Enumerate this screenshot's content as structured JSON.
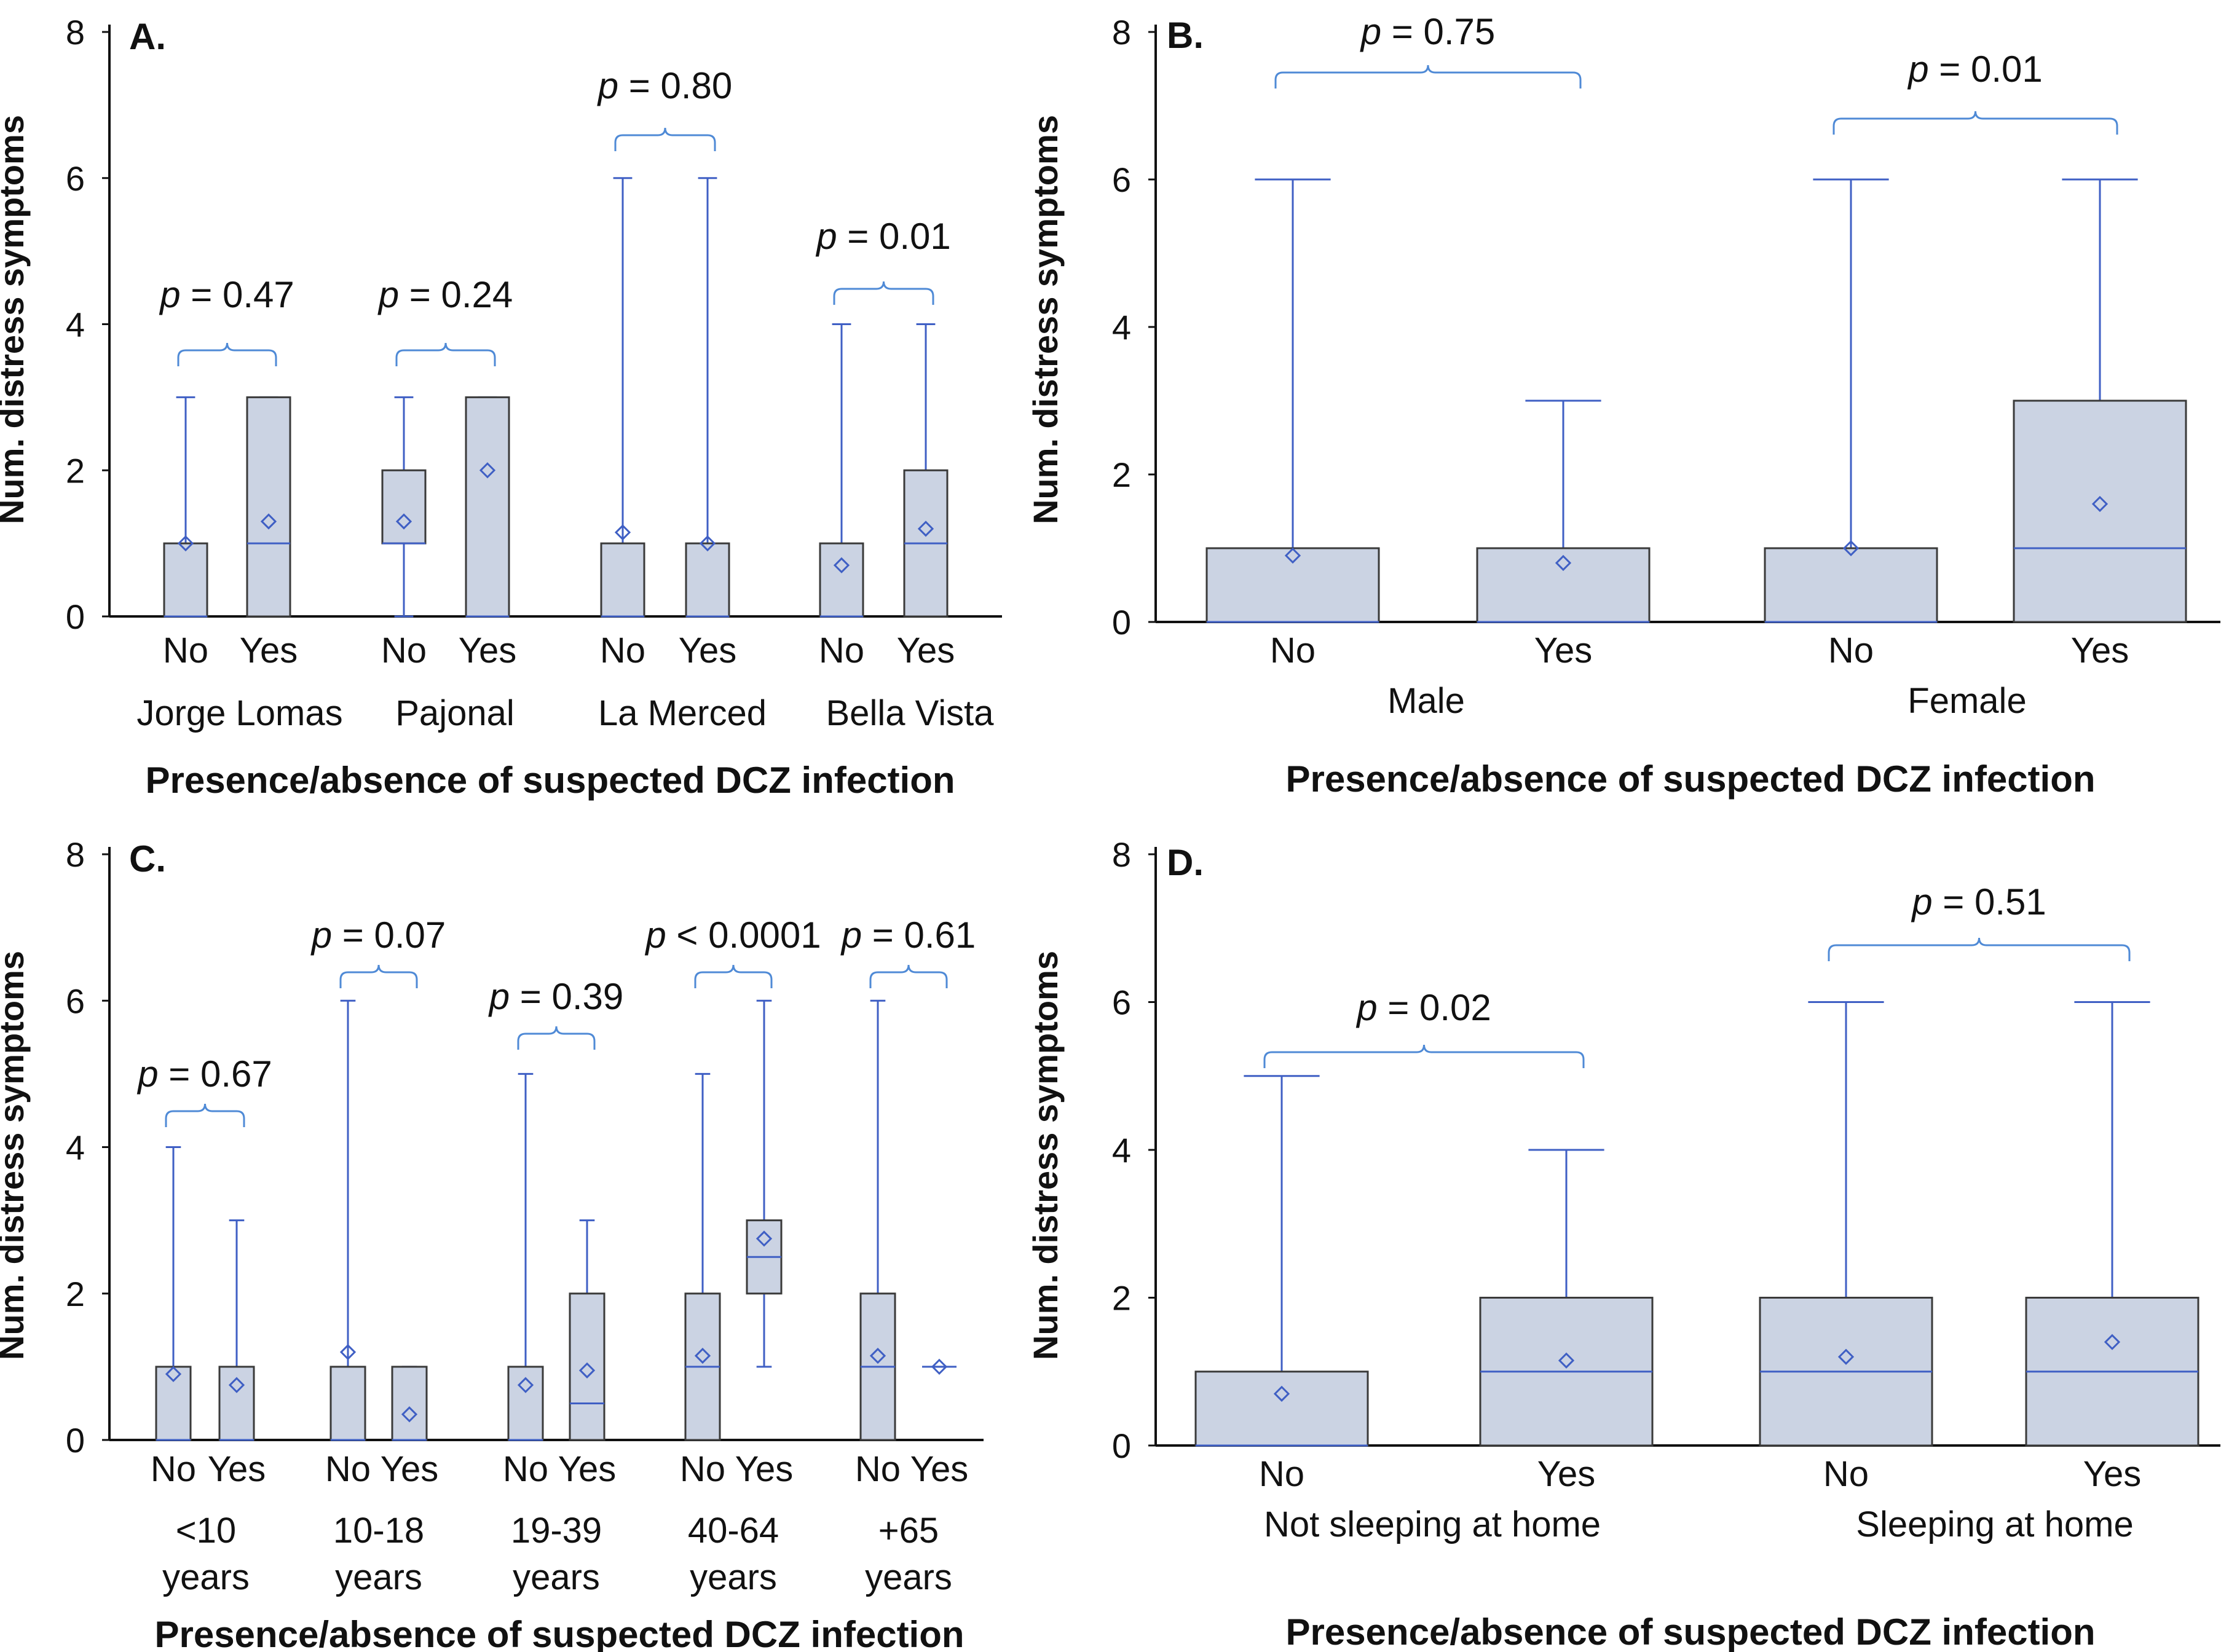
{
  "chart_data": [
    {
      "type": "box",
      "panel_label": "A.",
      "ylabel": "Num. distress symptoms",
      "xlabel": "Presence/absence of suspected DCZ infection",
      "ylim": [
        0,
        8
      ],
      "yticks": [
        "0",
        "2",
        "4",
        "6",
        "8"
      ],
      "groups": [
        {
          "name": "Jorge Lomas",
          "p_value": "p = 0.47",
          "boxes": [
            {
              "category": "No",
              "min": 0,
              "q1": 0,
              "median": 0,
              "q3": 1,
              "max": 3,
              "mean": 1.0
            },
            {
              "category": "Yes",
              "min": 0,
              "q1": 0,
              "median": 1,
              "q3": 3,
              "max": 3,
              "mean": 1.3
            }
          ]
        },
        {
          "name": "Pajonal",
          "p_value": "p = 0.24",
          "boxes": [
            {
              "category": "No",
              "min": 0,
              "q1": 1,
              "median": 1,
              "q3": 2,
              "max": 3,
              "mean": 1.3
            },
            {
              "category": "Yes",
              "min": 0,
              "q1": 0,
              "median": 0,
              "q3": 3,
              "max": 3,
              "mean": 2.0
            }
          ]
        },
        {
          "name": "La Merced",
          "p_value": "p = 0.80",
          "boxes": [
            {
              "category": "No",
              "min": 0,
              "q1": 0,
              "median": 0,
              "q3": 1,
              "max": 6,
              "mean": 1.15
            },
            {
              "category": "Yes",
              "min": 0,
              "q1": 0,
              "median": 0,
              "q3": 1,
              "max": 6,
              "mean": 1.0
            }
          ]
        },
        {
          "name": "Bella Vista",
          "p_value": "p = 0.01",
          "boxes": [
            {
              "category": "No",
              "min": 0,
              "q1": 0,
              "median": 0,
              "q3": 1,
              "max": 4,
              "mean": 0.7
            },
            {
              "category": "Yes",
              "min": 0,
              "q1": 0,
              "median": 1,
              "q3": 2,
              "max": 4,
              "mean": 1.2
            }
          ]
        }
      ]
    },
    {
      "type": "box",
      "panel_label": "B.",
      "ylabel": "Num. distress symptoms",
      "xlabel": "Presence/absence of suspected DCZ infection",
      "ylim": [
        0,
        8
      ],
      "yticks": [
        "0",
        "2",
        "4",
        "6",
        "8"
      ],
      "groups": [
        {
          "name": "Male",
          "p_value": "p = 0.75",
          "boxes": [
            {
              "category": "No",
              "min": 0,
              "q1": 0,
              "median": 0,
              "q3": 1,
              "max": 6,
              "mean": 0.9
            },
            {
              "category": "Yes",
              "min": 0,
              "q1": 0,
              "median": 0,
              "q3": 1,
              "max": 3,
              "mean": 0.8
            }
          ]
        },
        {
          "name": "Female",
          "p_value": "p = 0.01",
          "boxes": [
            {
              "category": "No",
              "min": 0,
              "q1": 0,
              "median": 0,
              "q3": 1,
              "max": 6,
              "mean": 1.0
            },
            {
              "category": "Yes",
              "min": 0,
              "q1": 0,
              "median": 1,
              "q3": 3,
              "max": 6,
              "mean": 1.6
            }
          ]
        }
      ]
    },
    {
      "type": "box",
      "panel_label": "C.",
      "ylabel": "Num. distress symptoms",
      "xlabel": "Presence/absence of suspected DCZ infection",
      "ylim": [
        0,
        8
      ],
      "yticks": [
        "0",
        "2",
        "4",
        "6",
        "8"
      ],
      "groups": [
        {
          "name": "<10 years",
          "name_lines": [
            "<10",
            "years"
          ],
          "p_value": "p = 0.67",
          "boxes": [
            {
              "category": "No",
              "min": 0,
              "q1": 0,
              "median": 0,
              "q3": 1,
              "max": 4,
              "mean": 0.9
            },
            {
              "category": "Yes",
              "min": 0,
              "q1": 0,
              "median": 0,
              "q3": 1,
              "max": 3,
              "mean": 0.75
            }
          ]
        },
        {
          "name": "10-18 years",
          "name_lines": [
            "10-18",
            "years"
          ],
          "p_value": "p = 0.07",
          "boxes": [
            {
              "category": "No",
              "min": 0,
              "q1": 0,
              "median": 0,
              "q3": 1,
              "max": 6,
              "mean": 1.2
            },
            {
              "category": "Yes",
              "min": 0,
              "q1": 0,
              "median": 0,
              "q3": 1,
              "max": 1,
              "mean": 0.35
            }
          ]
        },
        {
          "name": "19-39 years",
          "name_lines": [
            "19-39",
            "years"
          ],
          "p_value": "p = 0.39",
          "boxes": [
            {
              "category": "No",
              "min": 0,
              "q1": 0,
              "median": 0,
              "q3": 1,
              "max": 5,
              "mean": 0.75
            },
            {
              "category": "Yes",
              "min": 0,
              "q1": 0,
              "median": 0.5,
              "q3": 2,
              "max": 3,
              "mean": 0.95
            }
          ]
        },
        {
          "name": "40-64 years",
          "name_lines": [
            "40-64",
            "years"
          ],
          "p_value": "p < 0.0001",
          "boxes": [
            {
              "category": "No",
              "min": 0,
              "q1": 0,
              "median": 1,
              "q3": 2,
              "max": 5,
              "mean": 1.15
            },
            {
              "category": "Yes",
              "min": 1,
              "q1": 2,
              "median": 2.5,
              "q3": 3,
              "max": 6,
              "mean": 2.75
            }
          ]
        },
        {
          "name": "+65 years",
          "name_lines": [
            "+65",
            "years"
          ],
          "p_value": "p = 0.61",
          "boxes": [
            {
              "category": "No",
              "min": 0,
              "q1": 0,
              "median": 1,
              "q3": 2,
              "max": 6,
              "mean": 1.15
            },
            {
              "category": "Yes",
              "min": 1,
              "q1": 1,
              "median": 1,
              "q3": 1,
              "max": 1,
              "mean": 1.0
            }
          ]
        }
      ]
    },
    {
      "type": "box",
      "panel_label": "D.",
      "ylabel": "Num. distress symptoms",
      "xlabel": "Presence/absence of suspected DCZ infection",
      "ylim": [
        0,
        8
      ],
      "yticks": [
        "0",
        "2",
        "4",
        "6",
        "8"
      ],
      "groups": [
        {
          "name": "Not sleeping at home",
          "p_value": "p = 0.02",
          "boxes": [
            {
              "category": "No",
              "min": 0,
              "q1": 0,
              "median": 0,
              "q3": 1,
              "max": 5,
              "mean": 0.7
            },
            {
              "category": "Yes",
              "min": 0,
              "q1": 0,
              "median": 1,
              "q3": 2,
              "max": 4,
              "mean": 1.15
            }
          ]
        },
        {
          "name": "Sleeping at home",
          "p_value": "p = 0.51",
          "boxes": [
            {
              "category": "No",
              "min": 0,
              "q1": 0,
              "median": 1,
              "q3": 2,
              "max": 6,
              "mean": 1.2
            },
            {
              "category": "Yes",
              "min": 0,
              "q1": 0,
              "median": 1,
              "q3": 2,
              "max": 6,
              "mean": 1.4
            }
          ]
        }
      ]
    }
  ],
  "style": {
    "box_fill": "#cbd3e3",
    "box_stroke": "#3a3a3a",
    "whisker_color": "#3f5fc4",
    "median_color": "#3f5fc4",
    "mean_marker_color": "#3f5fc4",
    "bracket_color": "#4f8ad6",
    "axis_color": "#111111"
  }
}
